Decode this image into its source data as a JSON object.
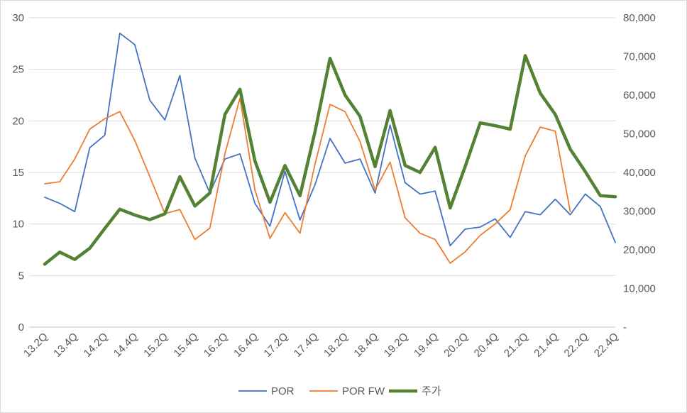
{
  "chart_data": {
    "type": "line",
    "categories": [
      "13.2Q",
      "13.3Q",
      "13.4Q",
      "14.1Q",
      "14.2Q",
      "14.3Q",
      "14.4Q",
      "15.1Q",
      "15.2Q",
      "15.3Q",
      "15.4Q",
      "16.1Q",
      "16.2Q",
      "16.3Q",
      "16.4Q",
      "17.1Q",
      "17.2Q",
      "17.3Q",
      "17.4Q",
      "18.1Q",
      "18.2Q",
      "18.3Q",
      "18.4Q",
      "19.1Q",
      "19.2Q",
      "19.3Q",
      "19.4Q",
      "20.1Q",
      "20.2Q",
      "20.3Q",
      "20.4Q",
      "21.1Q",
      "21.2Q",
      "21.3Q",
      "21.4Q",
      "22.1Q",
      "22.2Q",
      "22.3Q",
      "22.4Q"
    ],
    "x_tick_labels": [
      "13.2Q",
      "13.4Q",
      "14.2Q",
      "14.4Q",
      "15.2Q",
      "15.4Q",
      "16.2Q",
      "16.4Q",
      "17.2Q",
      "17.4Q",
      "18.2Q",
      "18.4Q",
      "19.2Q",
      "19.4Q",
      "20.2Q",
      "20.4Q",
      "21.2Q",
      "21.4Q",
      "22.2Q",
      "22.4Q"
    ],
    "y_left": {
      "ylim": [
        0,
        30
      ],
      "ticks": [
        "0",
        "5",
        "10",
        "15",
        "20",
        "25",
        "30"
      ]
    },
    "y_right": {
      "ylim": [
        0,
        80000
      ],
      "ticks": [
        "-",
        "10,000",
        "20,000",
        "30,000",
        "40,000",
        "50,000",
        "60,000",
        "70,000",
        "80,000"
      ]
    },
    "grid": true,
    "legend": "bottom",
    "series": [
      {
        "name": "POR",
        "axis": "left",
        "color": "#4472c4",
        "values": [
          12.6,
          12.0,
          11.2,
          17.4,
          18.6,
          28.5,
          27.4,
          22.0,
          20.1,
          24.4,
          16.4,
          13.0,
          16.3,
          16.8,
          12.0,
          9.8,
          15.1,
          10.4,
          13.8,
          18.3,
          15.9,
          16.3,
          13.0,
          19.6,
          14.0,
          12.9,
          13.2,
          7.9,
          9.5,
          9.7,
          10.5,
          8.7,
          11.2,
          10.9,
          12.4,
          10.9,
          12.9,
          11.7,
          8.2
        ]
      },
      {
        "name": "POR FW",
        "axis": "left",
        "color": "#ed7d31",
        "values": [
          13.9,
          14.1,
          16.3,
          19.2,
          20.2,
          20.9,
          18.1,
          14.6,
          11.0,
          11.4,
          8.5,
          9.6,
          16.8,
          22.2,
          13.3,
          8.6,
          11.1,
          9.1,
          15.8,
          21.6,
          20.9,
          18.0,
          13.3,
          16.0,
          10.6,
          9.1,
          8.5,
          6.2,
          7.3,
          8.9,
          10.0,
          11.4,
          16.6,
          19.4,
          19.0,
          11.2,
          null,
          null,
          null
        ]
      },
      {
        "name": "주가",
        "axis": "right",
        "color": "#548235",
        "values": [
          16300,
          19400,
          17500,
          20400,
          25500,
          30500,
          29000,
          27800,
          29300,
          38900,
          31300,
          34700,
          55000,
          61500,
          43000,
          32300,
          41800,
          34000,
          50500,
          69500,
          60000,
          54500,
          41500,
          56000,
          41800,
          40000,
          46500,
          30800,
          41500,
          52800,
          52100,
          51200,
          70200,
          60500,
          55000,
          46000,
          40200,
          34000,
          33700
        ]
      }
    ]
  }
}
